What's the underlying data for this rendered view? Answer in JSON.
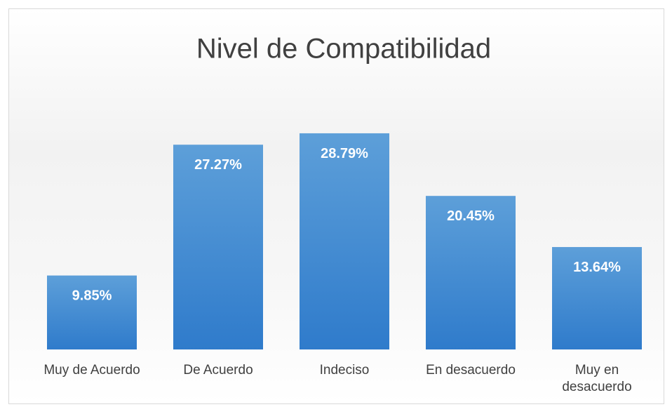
{
  "chart_data": {
    "type": "bar",
    "title": "Nivel de Compatibilidad",
    "categories": [
      "Muy de Acuerdo",
      "De Acuerdo",
      "Indeciso",
      "En desacuerdo",
      "Muy en desacuerdo"
    ],
    "values": [
      9.85,
      27.27,
      28.79,
      20.45,
      13.64
    ],
    "value_labels": [
      "9.85%",
      "27.27%",
      "28.79%",
      "20.45%",
      "13.64%"
    ],
    "color": "#4a8fd6",
    "ylim": [
      0,
      35
    ]
  }
}
